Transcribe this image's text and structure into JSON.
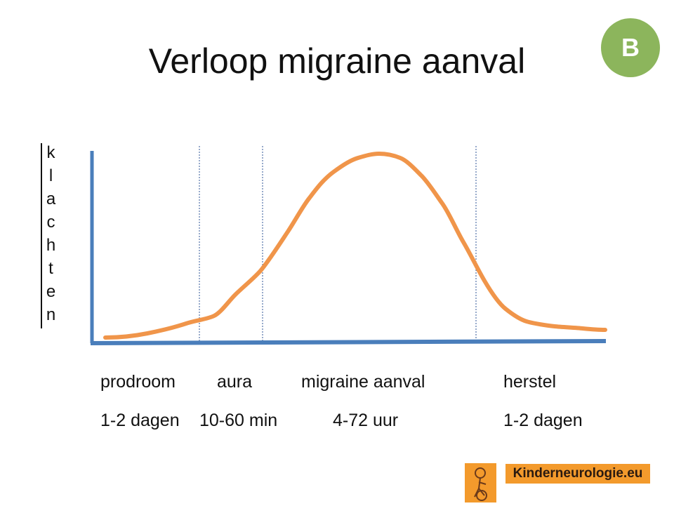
{
  "title": "Verloop migraine aanval",
  "badge": "B",
  "y_axis_label": "klachten",
  "phases": [
    {
      "name": "prodroom",
      "duration": "1-2 dagen"
    },
    {
      "name": "aura",
      "duration": "10-60 min"
    },
    {
      "name": "migraine aanval",
      "duration": "4-72 uur"
    },
    {
      "name": "herstel",
      "duration": "1-2 dagen"
    }
  ],
  "logo": {
    "text": "Kinderneurologie.eu"
  }
}
